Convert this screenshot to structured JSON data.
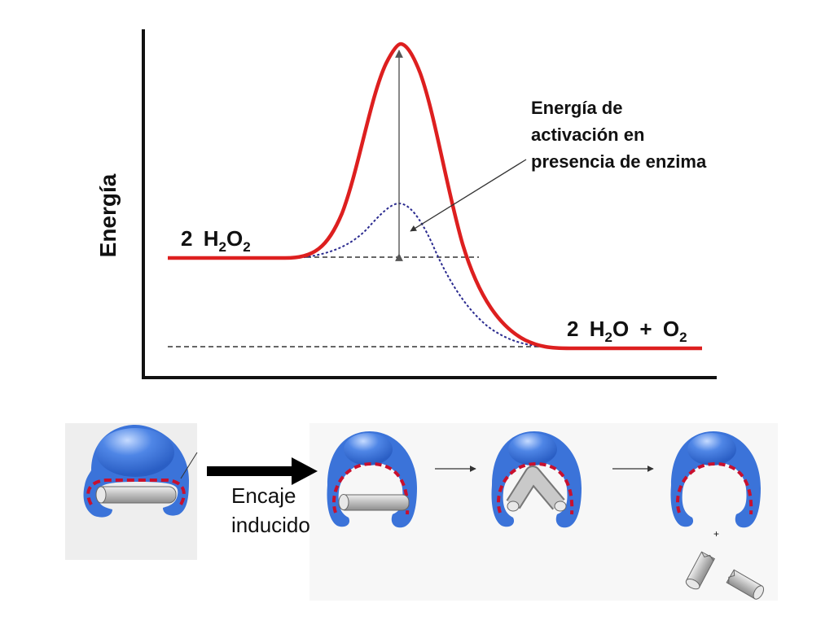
{
  "energy_diagram": {
    "ylabel": "Energía",
    "reactant": {
      "coef": "2",
      "el1": "H",
      "sub1": "2",
      "el2": "O",
      "sub2": "2"
    },
    "product": {
      "coef": "2",
      "el1": "H",
      "sub1": "2",
      "el2": "O",
      "plus": "+",
      "el3": "O",
      "sub3": "2"
    },
    "annotation": [
      "Energía de",
      "activación en",
      "presencia de enzima"
    ],
    "colors": {
      "uncatalyzed": "#dd1f1f",
      "catalyzed": "#2a2a8f",
      "axis": "#111111",
      "reference": "#333333"
    }
  },
  "induced_fit": {
    "label": [
      "Encaje",
      "inducido"
    ],
    "plus": "+",
    "colors": {
      "enzyme": "#3b73d9",
      "enzyme_highlight": "#9ec0f5",
      "active_site": "#c8102e",
      "substrate": "#c9c9c9"
    }
  }
}
